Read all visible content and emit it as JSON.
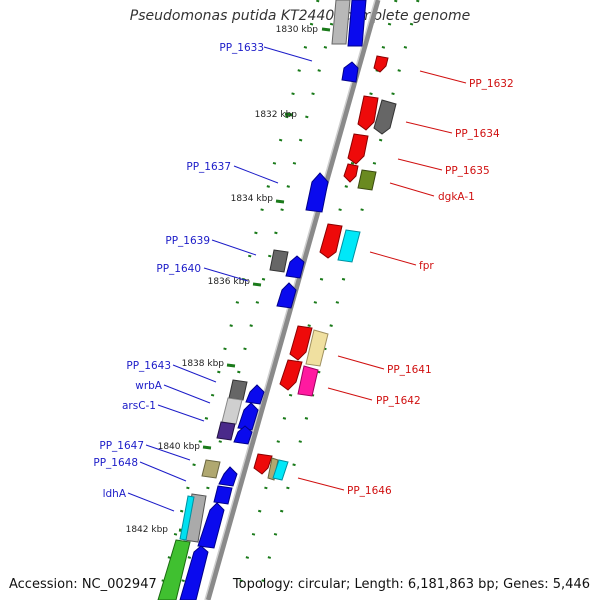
{
  "title": "Pseudomonas putida KT2440, complete genome",
  "footer": {
    "accession": "Accession: NC_002947",
    "topology": "Topology: circular; Length: 6,181,863 bp; Genes: 5,446"
  },
  "colors": {
    "blue_gene": "#0a0aee",
    "red_gene": "#ee0a0a",
    "label_blue": "#1c1cc8",
    "label_red": "#d01010",
    "tick_green": "#1a7a1a",
    "backbone": "#8a8a8a"
  },
  "kbp_labels": [
    "1830 kbp",
    "1832 kbp",
    "1834 kbp",
    "1836 kbp",
    "1838 kbp",
    "1840 kbp",
    "1842 kbp"
  ],
  "left_labels": [
    "PP_1633",
    "PP_1637",
    "PP_1639",
    "PP_1640",
    "PP_1643",
    "wrbA",
    "arsC-1",
    "PP_1647",
    "PP_1648",
    "ldhA"
  ],
  "right_labels": [
    "PP_1632",
    "PP_1634",
    "PP_1635",
    "dgkA-1",
    "fpr",
    "PP_1641",
    "PP_1642",
    "PP_1646"
  ]
}
